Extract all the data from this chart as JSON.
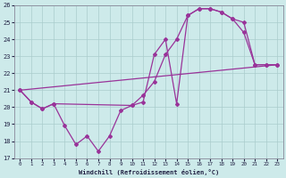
{
  "xlabel": "Windchill (Refroidissement éolien,°C)",
  "background_color": "#cdeaea",
  "grid_color": "#aacccc",
  "line_color": "#993399",
  "xlim": [
    -0.5,
    23.5
  ],
  "ylim": [
    17,
    26
  ],
  "yticks": [
    17,
    18,
    19,
    20,
    21,
    22,
    23,
    24,
    25,
    26
  ],
  "xticks": [
    0,
    1,
    2,
    3,
    4,
    5,
    6,
    7,
    8,
    9,
    10,
    11,
    12,
    13,
    14,
    15,
    16,
    17,
    18,
    19,
    20,
    21,
    22,
    23
  ],
  "line1_x": [
    0,
    1,
    2,
    3,
    4,
    5,
    6,
    7,
    8,
    9,
    10,
    11,
    12,
    13,
    14,
    15,
    16,
    17,
    18,
    19,
    20,
    21,
    22,
    23
  ],
  "line1_y": [
    21.0,
    20.3,
    19.9,
    20.2,
    18.9,
    17.8,
    18.3,
    17.4,
    18.3,
    19.8,
    20.1,
    20.3,
    23.1,
    24.0,
    20.2,
    25.4,
    25.8,
    25.8,
    25.6,
    25.2,
    24.4,
    22.5,
    22.5,
    22.5
  ],
  "line2_x": [
    0,
    23
  ],
  "line2_y": [
    21.0,
    22.5
  ],
  "line3_x": [
    0,
    1,
    2,
    3,
    10,
    11,
    12,
    13,
    14,
    15,
    16,
    17,
    18,
    19,
    20,
    21,
    22,
    23
  ],
  "line3_y": [
    21.0,
    20.3,
    19.9,
    20.2,
    20.1,
    20.7,
    21.5,
    23.1,
    24.0,
    25.4,
    25.8,
    25.8,
    25.6,
    25.2,
    25.0,
    22.5,
    22.5,
    22.5
  ]
}
